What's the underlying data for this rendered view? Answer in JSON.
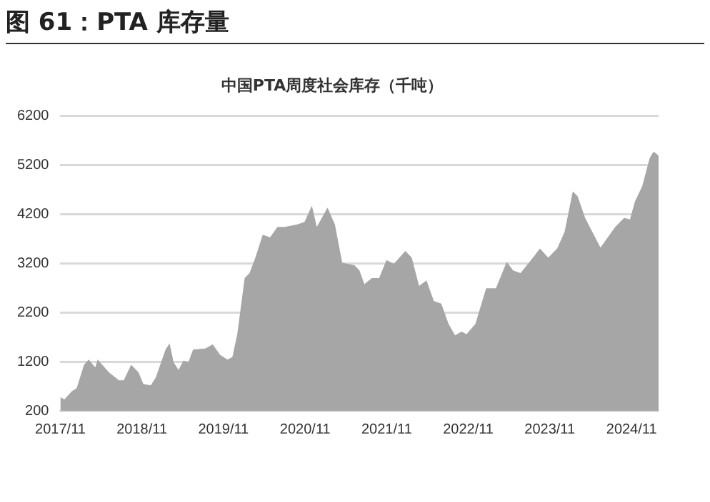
{
  "chart_data": {
    "type": "area",
    "title": "图 61：PTA 库存量",
    "subtitle": "中国PTA周度社会库存（千吨）",
    "x": [
      "2017-11-01",
      "2017-11-19",
      "2017-12-22",
      "2018-01-13",
      "2018-02-15",
      "2018-03-08",
      "2018-04-06",
      "2018-04-17",
      "2018-06-07",
      "2018-07-21",
      "2018-08-12",
      "2018-09-14",
      "2018-10-17",
      "2018-11-08",
      "2018-12-11",
      "2019-01-02",
      "2019-02-15",
      "2019-03-05",
      "2019-03-23",
      "2019-04-14",
      "2019-05-06",
      "2019-05-28",
      "2019-06-18",
      "2019-08-12",
      "2019-09-14",
      "2019-10-17",
      "2019-11-19",
      "2019-12-11",
      "2020-01-02",
      "2020-02-04",
      "2020-02-26",
      "2020-03-23",
      "2020-04-25",
      "2020-05-28",
      "2020-06-30",
      "2020-08-02",
      "2020-09-26",
      "2020-10-29",
      "2020-12-01",
      "2020-12-23",
      "2021-02-09",
      "2021-03-14",
      "2021-04-16",
      "2021-06-10",
      "2021-07-02",
      "2021-07-24",
      "2021-08-26",
      "2021-09-28",
      "2021-10-31",
      "2021-12-03",
      "2022-01-23",
      "2022-02-21",
      "2022-03-26",
      "2022-04-28",
      "2022-05-31",
      "2022-07-03",
      "2022-08-05",
      "2022-09-03",
      "2022-10-02",
      "2022-10-24",
      "2022-12-03",
      "2023-01-20",
      "2023-03-05",
      "2023-04-22",
      "2023-05-21",
      "2023-06-23",
      "2023-08-09",
      "2023-09-18",
      "2023-10-25",
      "2023-12-04",
      "2024-01-06",
      "2024-02-12",
      "2024-03-05",
      "2024-04-07",
      "2024-05-10",
      "2024-06-15",
      "2024-07-18",
      "2024-08-20",
      "2024-09-29",
      "2024-10-25",
      "2024-11-16",
      "2024-12-19",
      "2025-01-21",
      "2025-02-08",
      "2025-03-02"
    ],
    "series": [
      {
        "color": "#a6a6a6",
        "values": [
          480,
          430,
          595,
          657,
          1135,
          1240,
          1080,
          1240,
          980,
          820,
          820,
          1135,
          980,
          740,
          720,
          875,
          1445,
          1570,
          1185,
          1030,
          1220,
          1185,
          1445,
          1465,
          1550,
          1340,
          1240,
          1290,
          1755,
          2900,
          3000,
          3315,
          3780,
          3730,
          3940,
          3940,
          3990,
          4040,
          4370,
          3940,
          4330,
          3990,
          3210,
          3160,
          3055,
          2775,
          2900,
          2900,
          3265,
          3190,
          3450,
          3315,
          2740,
          2850,
          2430,
          2380,
          1965,
          1735,
          1810,
          1755,
          1965,
          2690,
          2690,
          3230,
          3055,
          3000,
          3265,
          3500,
          3315,
          3500,
          3835,
          4665,
          4560,
          4125,
          3835,
          3520,
          3730,
          3940,
          4125,
          4090,
          4455,
          4770,
          5340,
          5475,
          5390
        ]
      }
    ],
    "xlim": [
      "2017-11-01",
      "2025-03-02"
    ],
    "xticks": [
      {
        "value": "2017-11-01",
        "label": "2017/11"
      },
      {
        "value": "2018-11-01",
        "label": "2018/11"
      },
      {
        "value": "2019-11-01",
        "label": "2019/11"
      },
      {
        "value": "2020-11-01",
        "label": "2020/11"
      },
      {
        "value": "2021-11-01",
        "label": "2021/11"
      },
      {
        "value": "2022-11-01",
        "label": "2022/11"
      },
      {
        "value": "2023-11-01",
        "label": "2023/11"
      },
      {
        "value": "2024-11-01",
        "label": "2024/11"
      }
    ],
    "ylim": [
      200,
      6200
    ],
    "yticks": [
      200,
      1200,
      2200,
      3200,
      4200,
      5200,
      6200
    ],
    "grid": "y",
    "legend": false
  }
}
